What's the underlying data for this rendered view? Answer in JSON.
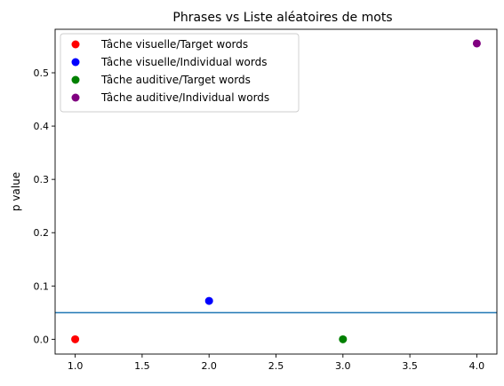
{
  "chart_data": {
    "type": "scatter",
    "title": "Phrases vs Liste aléatoires de mots",
    "xlabel": "",
    "ylabel": "p value",
    "xlim": [
      0.85,
      4.15
    ],
    "ylim": [
      -0.0277,
      0.5816
    ],
    "xticks": [
      "1.0",
      "1.5",
      "2.0",
      "2.5",
      "3.0",
      "3.5",
      "4.0"
    ],
    "yticks": [
      "0.0",
      "0.1",
      "0.2",
      "0.3",
      "0.4",
      "0.5"
    ],
    "grid": false,
    "legend_position": "top-left",
    "threshold_line": {
      "y": 0.05,
      "color": "#1f77b4"
    },
    "series": [
      {
        "name": "Tâche visuelle/Target words",
        "color": "#ff0000",
        "x": [
          1
        ],
        "y": [
          0.0
        ]
      },
      {
        "name": "Tâche visuelle/Individual words",
        "color": "#0000ff",
        "x": [
          2
        ],
        "y": [
          0.072
        ]
      },
      {
        "name": "Tâche auditive/Target words",
        "color": "#008000",
        "x": [
          3
        ],
        "y": [
          0.0
        ]
      },
      {
        "name": "Tâche auditive/Individual words",
        "color": "#800080",
        "x": [
          4
        ],
        "y": [
          0.555
        ]
      }
    ]
  }
}
